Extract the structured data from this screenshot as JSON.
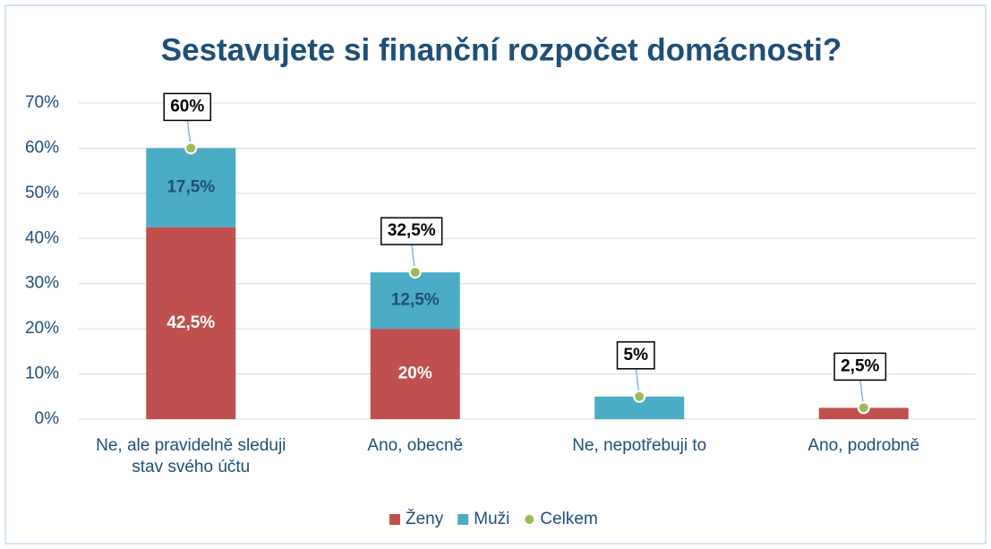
{
  "chart_data": {
    "type": "bar",
    "stacked": true,
    "title": "Sestavujete si finanční rozpočet domácnosti?",
    "categories": [
      "Ne, ale pravidelně sleduji stav svého účtu",
      "Ano, obecně",
      "Ne, nepotřebuji to",
      "Ano, podrobně"
    ],
    "series": [
      {
        "name": "Ženy",
        "color": "#c0504d",
        "values": [
          42.5,
          20,
          0,
          2.5
        ],
        "value_labels": [
          "42,5%",
          "20%",
          null,
          null
        ]
      },
      {
        "name": "Muži",
        "color": "#4bacc6",
        "values": [
          17.5,
          12.5,
          5,
          0
        ],
        "value_labels": [
          "17,5%",
          "12,5%",
          null,
          null
        ]
      },
      {
        "name": "Celkem",
        "type": "scatter",
        "color": "#9bbb59",
        "values": [
          60,
          32.5,
          5,
          2.5
        ],
        "value_labels": [
          "60%",
          "32,5%",
          "5%",
          "2,5%"
        ]
      }
    ],
    "ylim": [
      0,
      70
    ],
    "yticks": [
      {
        "value": 0,
        "label": "0%"
      },
      {
        "value": 10,
        "label": "10%"
      },
      {
        "value": 20,
        "label": "20%"
      },
      {
        "value": 30,
        "label": "30%"
      },
      {
        "value": 40,
        "label": "40%"
      },
      {
        "value": 50,
        "label": "50%"
      },
      {
        "value": 60,
        "label": "60%"
      },
      {
        "value": 70,
        "label": "70%"
      }
    ],
    "grid": true,
    "legend": "bottom"
  }
}
